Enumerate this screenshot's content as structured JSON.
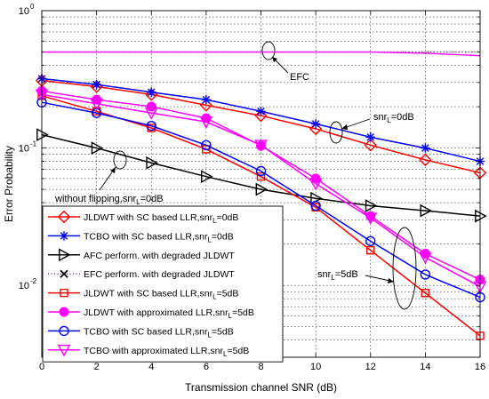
{
  "chart_data": {
    "type": "line",
    "title": "",
    "xlabel": "Transmission channel SNR (dB)",
    "ylabel": "Error Probability",
    "yscale": "log",
    "xlim": [
      0,
      16
    ],
    "ylim": [
      0.003,
      1
    ],
    "grid": true,
    "legend_position": "bottom-left",
    "x": [
      0,
      2,
      4,
      6,
      8,
      10,
      12,
      14,
      16
    ],
    "x_ticks": [
      "0",
      "2",
      "4",
      "6",
      "8",
      "10",
      "12",
      "14",
      "16"
    ],
    "y_ticks": [
      {
        "value": 1,
        "base": "10",
        "exp": "0"
      },
      {
        "value": 0.1,
        "base": "10",
        "exp": "-1"
      },
      {
        "value": 0.01,
        "base": "10",
        "exp": "-2"
      }
    ],
    "series": [
      {
        "name_parts": [
          "JLDWT with SC based LLR,snr",
          "L",
          "=0dB"
        ],
        "color": "#ff0000",
        "marker": "diamond",
        "dash": "solid",
        "values": [
          0.31,
          0.28,
          0.245,
          0.205,
          0.172,
          0.138,
          0.105,
          0.082,
          0.066
        ]
      },
      {
        "name_parts": [
          "TCBO with SC based LLR,snr",
          "L",
          "=0dB"
        ],
        "color": "#0000ff",
        "marker": "star",
        "dash": "solid",
        "values": [
          0.32,
          0.29,
          0.255,
          0.225,
          0.185,
          0.15,
          0.12,
          0.1,
          0.08
        ]
      },
      {
        "name_parts": [
          "AFC perform. with degraded JLDWT",
          "",
          ""
        ],
        "color": "#000000",
        "marker": "triangle-right",
        "dash": "solid",
        "values": [
          0.125,
          0.1,
          0.078,
          0.062,
          0.05,
          0.043,
          0.038,
          0.035,
          0.032
        ]
      },
      {
        "name_parts": [
          "EFC perform. with degraded JLDWT",
          "",
          ""
        ],
        "color": "#7a3aa0",
        "marker": "x",
        "dash": "dotted",
        "values": [
          0.5,
          0.5,
          0.5,
          0.5,
          0.5,
          0.5,
          0.5,
          0.5,
          0.5
        ]
      },
      {
        "name_parts": [
          "JLDWT with SC based LLR,snr",
          "L",
          "=5dB"
        ],
        "color": "#ff0000",
        "marker": "square",
        "dash": "solid",
        "values": [
          0.24,
          0.185,
          0.14,
          0.098,
          0.062,
          0.037,
          0.018,
          0.0088,
          0.0043
        ]
      },
      {
        "name_parts": [
          "JLDWT with approximated LLR,snr",
          "L",
          "=5dB"
        ],
        "color": "#ff00ff",
        "marker": "circle-filled",
        "dash": "solid",
        "values": [
          0.26,
          0.225,
          0.2,
          0.165,
          0.104,
          0.06,
          0.032,
          0.017,
          0.011
        ]
      },
      {
        "name_parts": [
          "TCBO with SC based LLR,snr",
          "L",
          "=5dB"
        ],
        "color": "#0000ff",
        "marker": "circle",
        "dash": "solid",
        "values": [
          0.215,
          0.18,
          0.145,
          0.105,
          0.068,
          0.038,
          0.021,
          0.012,
          0.0082
        ]
      },
      {
        "name_parts": [
          "TCBO with approximated LLR,snr",
          "L",
          "=5dB"
        ],
        "color": "#ff00ff",
        "marker": "triangle-down",
        "dash": "solid",
        "values": [
          0.245,
          0.21,
          0.18,
          0.155,
          0.105,
          0.055,
          0.031,
          0.016,
          0.0098
        ]
      },
      {
        "name_parts": [
          "",
          "",
          ""
        ],
        "color": "#ff00ff",
        "marker": "none",
        "dash": "solid",
        "values": [
          0.5,
          0.5,
          0.5,
          0.5,
          0.5,
          0.5,
          0.5,
          0.49,
          0.47
        ]
      }
    ],
    "annotations": [
      {
        "parts": [
          "EFC",
          "",
          ""
        ]
      },
      {
        "parts": [
          "snr",
          "L",
          "=0dB"
        ]
      },
      {
        "parts": [
          "without flipping,snr",
          "L",
          "=0dB"
        ]
      },
      {
        "parts": [
          "snr",
          "L",
          "=5dB"
        ]
      }
    ]
  }
}
